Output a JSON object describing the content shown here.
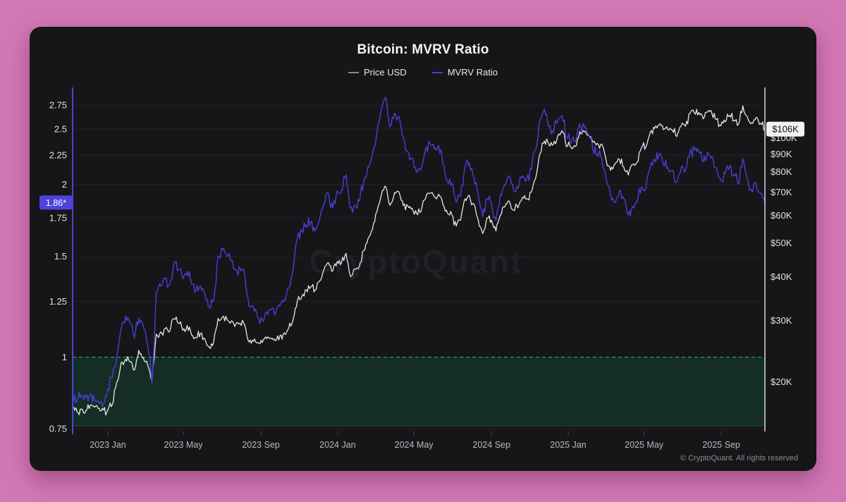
{
  "page": {
    "background_color": "#d277b5"
  },
  "card": {
    "background_color": "#161619",
    "copyright": "© CryptoQuant. All rights reserved"
  },
  "header": {
    "title": "Bitcoin: MVRV Ratio"
  },
  "legend": {
    "items": [
      {
        "label": "Price USD",
        "color": "#8b8b91"
      },
      {
        "label": "MVRV Ratio",
        "color": "#4a3fd0"
      }
    ]
  },
  "watermark": {
    "text": "CryptoQuant"
  },
  "chart_data": {
    "type": "line",
    "title": "Bitcoin: MVRV Ratio",
    "x_start": "2022-11-13",
    "x_end": "2025-11-09",
    "x_interval": "weekly",
    "grid": "horizontal-only",
    "legend_position": "top-center",
    "x_ticks": [
      {
        "label": "2023 Jan",
        "week": 8
      },
      {
        "label": "2023 May",
        "week": 25.1
      },
      {
        "label": "2023 Sep",
        "week": 42.7
      },
      {
        "label": "2024 Jan",
        "week": 60.1
      },
      {
        "label": "2024 May",
        "week": 77.4
      },
      {
        "label": "2024 Sep",
        "week": 95.0
      },
      {
        "label": "2025 Jan",
        "week": 112.4
      },
      {
        "label": "2025 May",
        "week": 129.6
      },
      {
        "label": "2025 Sep",
        "week": 147.1
      }
    ],
    "axes": {
      "left": {
        "label": "MVRV Ratio",
        "scale": "log",
        "range": [
          0.742,
          2.92
        ],
        "ticks": [
          {
            "label": "2.75",
            "value": 2.75
          },
          {
            "label": "2.5",
            "value": 2.5
          },
          {
            "label": "2.25",
            "value": 2.25
          },
          {
            "label": "2",
            "value": 2
          },
          {
            "label": "1.75",
            "value": 1.75
          },
          {
            "label": "1.5",
            "value": 1.5
          },
          {
            "label": "1.25",
            "value": 1.25
          },
          {
            "label": "1",
            "value": 1
          },
          {
            "label": "0.75",
            "value": 0.75
          }
        ],
        "current_value": 1.86,
        "current_value_label": "1.86*",
        "badge_color": "#4c43dd",
        "badge_text_color": "#ffffff",
        "axis_line_color": "#4c43dd"
      },
      "right": {
        "label": "Price USD",
        "scale": "log",
        "range_thousands_usd": [
          14.4,
          137
        ],
        "ticks": [
          {
            "label": "$100K",
            "value": 100
          },
          {
            "label": "$90K",
            "value": 90
          },
          {
            "label": "$80K",
            "value": 80
          },
          {
            "label": "$70K",
            "value": 70
          },
          {
            "label": "$60K",
            "value": 60
          },
          {
            "label": "$50K",
            "value": 50
          },
          {
            "label": "$40K",
            "value": 40
          },
          {
            "label": "$30K",
            "value": 30
          },
          {
            "label": "$20K",
            "value": 20
          }
        ],
        "current_value_thousands_usd": 106,
        "current_value_label": "$106K",
        "badge_color": "#f2f2f2",
        "badge_text_color": "#0e0e10",
        "axis_line_color": "#d8d8dc"
      }
    },
    "undervalued_zone": {
      "below_mvrv": 1,
      "fill_color": "#142d25",
      "dashed_line_color": "#35996b",
      "bottom_line_color": "#1e4a3b"
    },
    "series": [
      {
        "name": "Price USD",
        "axis": "right",
        "unit": "thousand USD",
        "color": "#e6e6e9",
        "values": [
          17.0,
          16.4,
          16.7,
          16.5,
          17.1,
          16.9,
          16.8,
          16.6,
          16.6,
          17.2,
          19.9,
          22.7,
          23.2,
          22.8,
          21.6,
          24.6,
          23.5,
          22.4,
          20.2,
          27.4,
          27.8,
          28.4,
          27.9,
          30.3,
          29.4,
          28.1,
          29.0,
          27.2,
          26.8,
          27.5,
          26.5,
          25.1,
          26.1,
          30.4,
          30.7,
          30.2,
          29.9,
          29.2,
          29.4,
          29.1,
          26.0,
          26.1,
          25.9,
          25.9,
          26.6,
          26.6,
          26.2,
          27.1,
          27.6,
          28.5,
          30.1,
          34.3,
          35.1,
          36.7,
          37.4,
          36.7,
          38.9,
          41.9,
          43.9,
          41.6,
          44.2,
          44.0,
          46.7,
          40.1,
          42.0,
          42.8,
          47.5,
          51.5,
          54.6,
          61.5,
          68.5,
          72.5,
          64.1,
          69.7,
          70.0,
          64.0,
          63.9,
          62.9,
          60.8,
          61.5,
          66.9,
          69.3,
          67.8,
          69.0,
          64.3,
          60.9,
          60.3,
          55.9,
          58.2,
          66.9,
          68.3,
          64.6,
          58.1,
          53.2,
          59.0,
          58.1,
          54.1,
          60.1,
          63.4,
          65.9,
          62.0,
          63.1,
          67.5,
          66.9,
          69.9,
          76.7,
          90.1,
          98.0,
          95.6,
          95.8,
          101.2,
          105.0,
          94.3,
          94.2,
          94.6,
          104.5,
          104.2,
          102.1,
          97.2,
          96.5,
          96.0,
          86.1,
          80.7,
          84.1,
          86.8,
          82.5,
          78.3,
          83.8,
          85.1,
          93.8,
          94.2,
          104.0,
          106.5,
          109.2,
          105.5,
          105.7,
          105.3,
          100.9,
          108.2,
          108.1,
          117.5,
          118.0,
          118.2,
          113.4,
          118.8,
          117.5,
          113.1,
          108.3,
          111.2,
          115.9,
          112.4,
          109.7,
          123.6,
          115.1,
          110.6,
          114.6,
          110.1,
          106.0
        ]
      },
      {
        "name": "MVRV Ratio",
        "axis": "left",
        "unit": "ratio",
        "color": "#4a3ed6",
        "values": [
          0.85,
          0.84,
          0.86,
          0.85,
          0.86,
          0.84,
          0.83,
          0.83,
          0.88,
          0.92,
          1.0,
          1.12,
          1.18,
          1.15,
          1.08,
          1.17,
          1.13,
          1.05,
          0.9,
          1.3,
          1.33,
          1.37,
          1.34,
          1.46,
          1.42,
          1.37,
          1.41,
          1.34,
          1.31,
          1.33,
          1.29,
          1.22,
          1.26,
          1.5,
          1.54,
          1.5,
          1.47,
          1.42,
          1.43,
          1.4,
          1.23,
          1.22,
          1.17,
          1.16,
          1.2,
          1.21,
          1.19,
          1.23,
          1.26,
          1.32,
          1.42,
          1.62,
          1.66,
          1.7,
          1.72,
          1.66,
          1.74,
          1.85,
          1.93,
          1.82,
          1.95,
          1.96,
          2.08,
          1.82,
          1.84,
          1.87,
          2.02,
          2.15,
          2.26,
          2.46,
          2.7,
          2.84,
          2.52,
          2.66,
          2.63,
          2.42,
          2.28,
          2.22,
          2.1,
          2.12,
          2.3,
          2.36,
          2.31,
          2.34,
          2.17,
          2.02,
          2.01,
          1.86,
          1.91,
          2.15,
          2.18,
          2.06,
          1.92,
          1.76,
          1.89,
          1.85,
          1.73,
          1.92,
          2.0,
          2.07,
          1.95,
          1.97,
          2.07,
          2.05,
          2.12,
          2.3,
          2.6,
          2.71,
          2.52,
          2.46,
          2.58,
          2.64,
          2.42,
          2.36,
          2.37,
          2.55,
          2.52,
          2.45,
          2.3,
          2.26,
          2.22,
          2.05,
          1.92,
          1.86,
          1.95,
          1.89,
          1.77,
          1.83,
          1.86,
          1.98,
          1.97,
          2.15,
          2.21,
          2.26,
          2.16,
          2.14,
          2.12,
          2.02,
          2.14,
          2.12,
          2.28,
          2.3,
          2.28,
          2.19,
          2.28,
          2.24,
          2.14,
          2.04,
          2.09,
          2.15,
          2.08,
          2.0,
          2.22,
          2.05,
          1.95,
          2.0,
          1.93,
          1.86
        ]
      }
    ]
  }
}
